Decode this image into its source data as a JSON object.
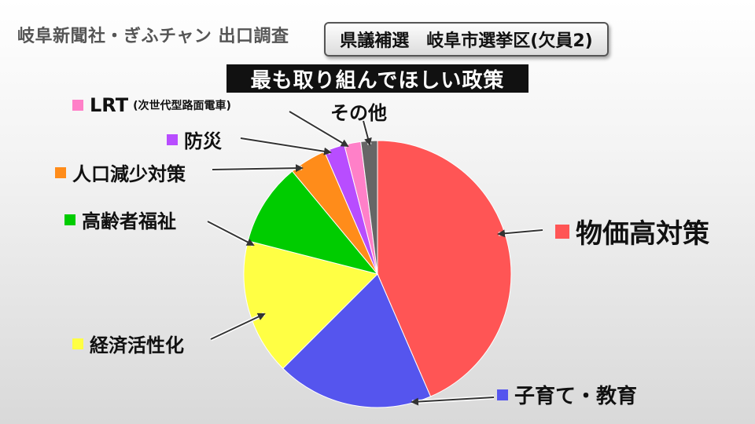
{
  "header": {
    "source": "岐阜新聞社・ぎふチャン 出口調査",
    "badge": "県議補選　岐阜市選挙区(欠員2)"
  },
  "chart_data": {
    "type": "pie",
    "title": "最も取り組んでほしい政策",
    "categories": [
      "物価高対策",
      "子育て・教育",
      "経済活性化",
      "高齢者福祉",
      "人口減少対策",
      "防災",
      "LRT",
      "その他"
    ],
    "category_notes": [
      "",
      "",
      "",
      "",
      "",
      "",
      "(次世代型路面電車)",
      ""
    ],
    "values": [
      43.5,
      19.0,
      16.5,
      10.0,
      4.5,
      2.5,
      2.0,
      2.0
    ],
    "colors": [
      "#ff5555",
      "#5555ee",
      "#ffff44",
      "#00cc00",
      "#ff8c1a",
      "#b84dff",
      "#ff80c8",
      "#666666"
    ],
    "start_angle_deg": 0,
    "direction": "clockwise"
  }
}
